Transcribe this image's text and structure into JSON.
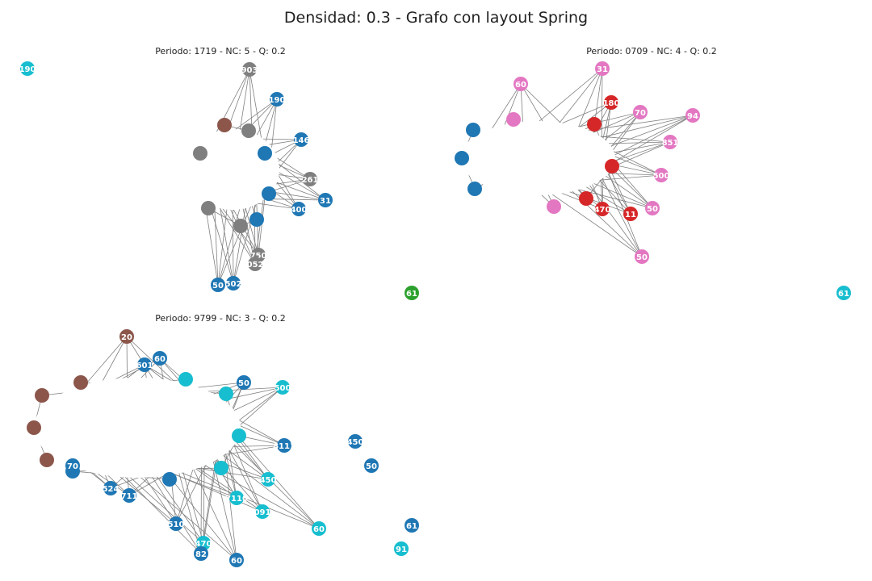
{
  "figure": {
    "title": "Densidad: 0.3 - Grafo con layout Spring"
  },
  "colors": {
    "blue": "#1f77b4",
    "brown": "#8c564b",
    "gray": "#7f7f7f",
    "red": "#d62728",
    "pink": "#e377c2",
    "cyan": "#17becf",
    "green": "#2ca02c",
    "edge": "#808080"
  },
  "chart_data": [
    {
      "type": "network",
      "title": "Periodo: 1719 - NC: 5 - Q: 0.2",
      "labeled_nodes": [
        {
          "label": "190",
          "community": "cyan"
        },
        {
          "label": "903",
          "community": "gray"
        },
        {
          "label": "190",
          "community": "blue"
        },
        {
          "label": "146",
          "community": "blue"
        },
        {
          "label": "261",
          "community": "gray"
        },
        {
          "label": "31",
          "community": "blue"
        },
        {
          "label": "400",
          "community": "blue"
        },
        {
          "label": "750",
          "community": "gray"
        },
        {
          "label": "052",
          "community": "gray"
        },
        {
          "label": "50",
          "community": "blue"
        },
        {
          "label": "502",
          "community": "blue"
        },
        {
          "label": "61",
          "community": "green"
        }
      ]
    },
    {
      "type": "network",
      "title": "Periodo: 0709 - NC: 4 - Q: 0.2",
      "labeled_nodes": [
        {
          "label": "31",
          "community": "pink"
        },
        {
          "label": "60",
          "community": "pink"
        },
        {
          "label": "180",
          "community": "red"
        },
        {
          "label": "70",
          "community": "pink"
        },
        {
          "label": "94",
          "community": "pink"
        },
        {
          "label": "851",
          "community": "pink"
        },
        {
          "label": "500",
          "community": "pink"
        },
        {
          "label": "50",
          "community": "pink"
        },
        {
          "label": "50",
          "community": "pink"
        },
        {
          "label": "11",
          "community": "red"
        },
        {
          "label": "470",
          "community": "red"
        },
        {
          "label": "61",
          "community": "cyan"
        }
      ]
    },
    {
      "type": "network",
      "title": "Periodo: 9799 - NC: 3 - Q: 0.2",
      "labeled_nodes": [
        {
          "label": "20",
          "community": "brown"
        },
        {
          "label": "60",
          "community": "blue"
        },
        {
          "label": "601",
          "community": "blue"
        },
        {
          "label": "500",
          "community": "cyan"
        },
        {
          "label": "50",
          "community": "blue"
        },
        {
          "label": "450",
          "community": "blue"
        },
        {
          "label": "50",
          "community": "blue"
        },
        {
          "label": "8111",
          "community": "blue"
        },
        {
          "label": "450",
          "community": "cyan"
        },
        {
          "label": "7110",
          "community": "cyan"
        },
        {
          "label": "091",
          "community": "cyan"
        },
        {
          "label": "60",
          "community": "cyan"
        },
        {
          "label": "61",
          "community": "blue"
        },
        {
          "label": "91",
          "community": "cyan"
        },
        {
          "label": "60",
          "community": "blue"
        },
        {
          "label": "470",
          "community": "cyan"
        },
        {
          "label": "82",
          "community": "blue"
        },
        {
          "label": "510",
          "community": "blue"
        },
        {
          "label": "524",
          "community": "blue"
        },
        {
          "label": "711",
          "community": "blue"
        },
        {
          "label": "70",
          "community": "blue"
        }
      ]
    }
  ]
}
